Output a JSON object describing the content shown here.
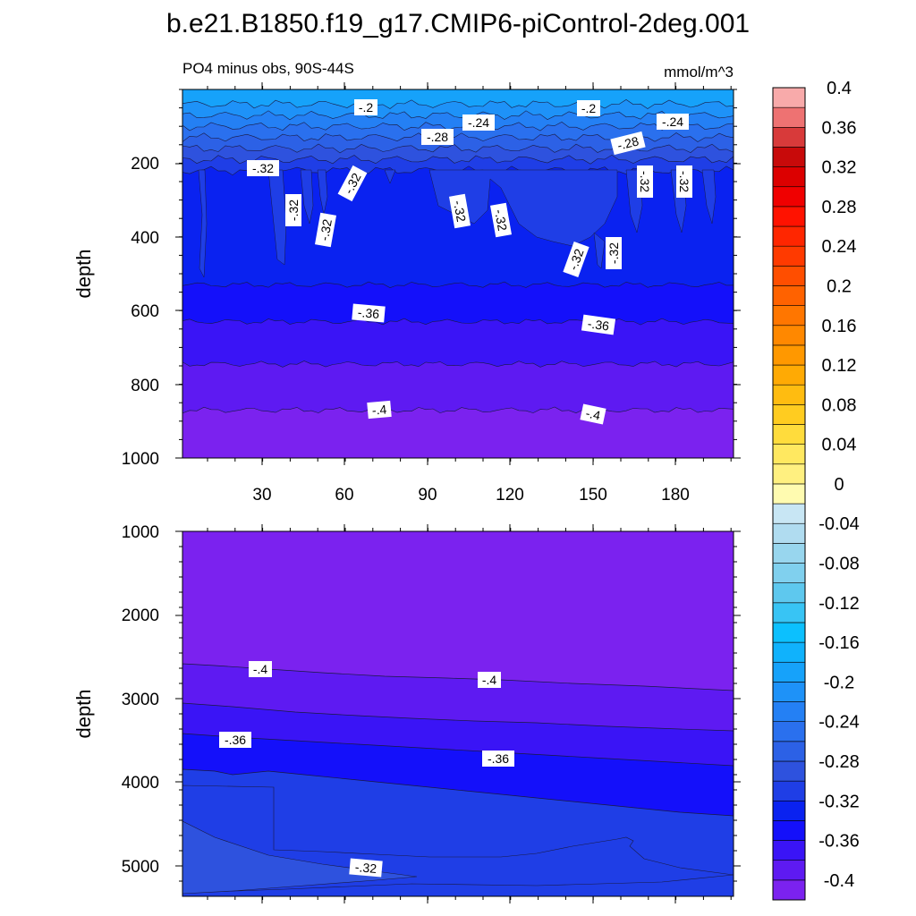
{
  "chart_data": {
    "type": "contour",
    "title": "b.e21.B1850.f19_g17.CMIP6-piControl-2deg.001",
    "subtitle_left": "PO4 minus obs, 90S-44S",
    "units": "mmol/m^3",
    "colorbar": {
      "levels": [
        -0.4,
        -0.38,
        -0.36,
        -0.34,
        -0.32,
        -0.3,
        -0.28,
        -0.26,
        -0.24,
        -0.22,
        -0.2,
        -0.18,
        -0.16,
        -0.14,
        -0.12,
        -0.1,
        -0.08,
        -0.06,
        -0.04,
        -0.02,
        0,
        0.02,
        0.04,
        0.06,
        0.08,
        0.1,
        0.12,
        0.14,
        0.16,
        0.18,
        0.2,
        0.22,
        0.24,
        0.26,
        0.28,
        0.3,
        0.32,
        0.34,
        0.36,
        0.38,
        0.4
      ],
      "colors": [
        "#7b22ef",
        "#5e1af2",
        "#3a14f6",
        "#1410fa",
        "#0a22f0",
        "#1f3ee6",
        "#2e52de",
        "#2c61e6",
        "#2a70ee",
        "#2480f4",
        "#1e92f8",
        "#16a2fa",
        "#10b2fc",
        "#0cc0fe",
        "#38c4f4",
        "#5ec8ee",
        "#80d0ee",
        "#98d6ee",
        "#b0dcf0",
        "#c8e6f4",
        "#fffbb0",
        "#fff080",
        "#ffe860",
        "#ffdc3c",
        "#ffcc20",
        "#ffbc10",
        "#ffaa04",
        "#ff9800",
        "#ff8800",
        "#ff7600",
        "#ff6200",
        "#ff4e00",
        "#ff3a00",
        "#ff2600",
        "#ff1200",
        "#f00000",
        "#dc0000",
        "#c80a0a",
        "#d83a3a",
        "#ee7272",
        "#f8aaaa"
      ],
      "tick_labels": [
        "-0.4",
        "-0.36",
        "-0.32",
        "-0.28",
        "-0.24",
        "-0.2",
        "-0.16",
        "-0.12",
        "-0.08",
        "-0.04",
        "0",
        "0.04",
        "0.08",
        "0.12",
        "0.16",
        "0.2",
        "0.24",
        "0.28",
        "0.32",
        "0.36",
        "0.4"
      ]
    },
    "panels": [
      {
        "ylabel": "depth",
        "xlim": [
          0,
          200
        ],
        "ylim": [
          0,
          1000
        ],
        "yticks": [
          "200",
          "400",
          "600",
          "800",
          "1000"
        ],
        "xticks": [
          "30",
          "60",
          "90",
          "120",
          "150",
          "180"
        ],
        "contour_labels": [
          "-.2",
          "-.2",
          "-.24",
          "-.24",
          "-.28",
          "-.28",
          "-.32",
          "-.32",
          "-.32",
          "-.32",
          "-.32",
          "-.32",
          "-.32",
          "-.32",
          "-.32",
          "-.32",
          "-.36",
          "-.36",
          "-.4",
          "-.4"
        ],
        "bands": [
          {
            "level": -0.18,
            "from_depth": 0,
            "to_depth": 40
          },
          {
            "level": -0.2,
            "from_depth": 40,
            "to_depth": 70
          },
          {
            "level": -0.22,
            "from_depth": 70,
            "to_depth": 100
          },
          {
            "level": -0.24,
            "from_depth": 100,
            "to_depth": 130
          },
          {
            "level": -0.26,
            "from_depth": 130,
            "to_depth": 160
          },
          {
            "level": -0.28,
            "from_depth": 160,
            "to_depth": 190
          },
          {
            "level": -0.3,
            "from_depth": 190,
            "to_depth": 220
          },
          {
            "level": -0.32,
            "from_depth": 220,
            "to_depth": 530
          },
          {
            "level": -0.34,
            "from_depth": 530,
            "to_depth": 630
          },
          {
            "level": -0.36,
            "from_depth": 630,
            "to_depth": 745
          },
          {
            "level": -0.38,
            "from_depth": 745,
            "to_depth": 870
          },
          {
            "level": -0.4,
            "from_depth": 870,
            "to_depth": 1000
          }
        ]
      },
      {
        "ylabel": "depth",
        "xlim": [
          0,
          200
        ],
        "ylim": [
          1000,
          5400
        ],
        "yticks": [
          "1000",
          "2000",
          "3000",
          "4000",
          "5000"
        ],
        "contour_labels": [
          "-.4",
          "-.4",
          "-.36",
          "-.36",
          "-.32"
        ],
        "bands": [
          {
            "level": -0.4,
            "from_depth": 1000,
            "to_depth": 2600
          },
          {
            "level": -0.38,
            "from_depth": 2600,
            "to_depth": 3100
          },
          {
            "level": -0.36,
            "from_depth": 3100,
            "to_depth": 3450
          },
          {
            "level": -0.34,
            "from_depth": 3450,
            "to_depth": 3850
          },
          {
            "level": -0.32,
            "from_depth": 3850,
            "to_depth": 5400
          }
        ]
      }
    ]
  }
}
